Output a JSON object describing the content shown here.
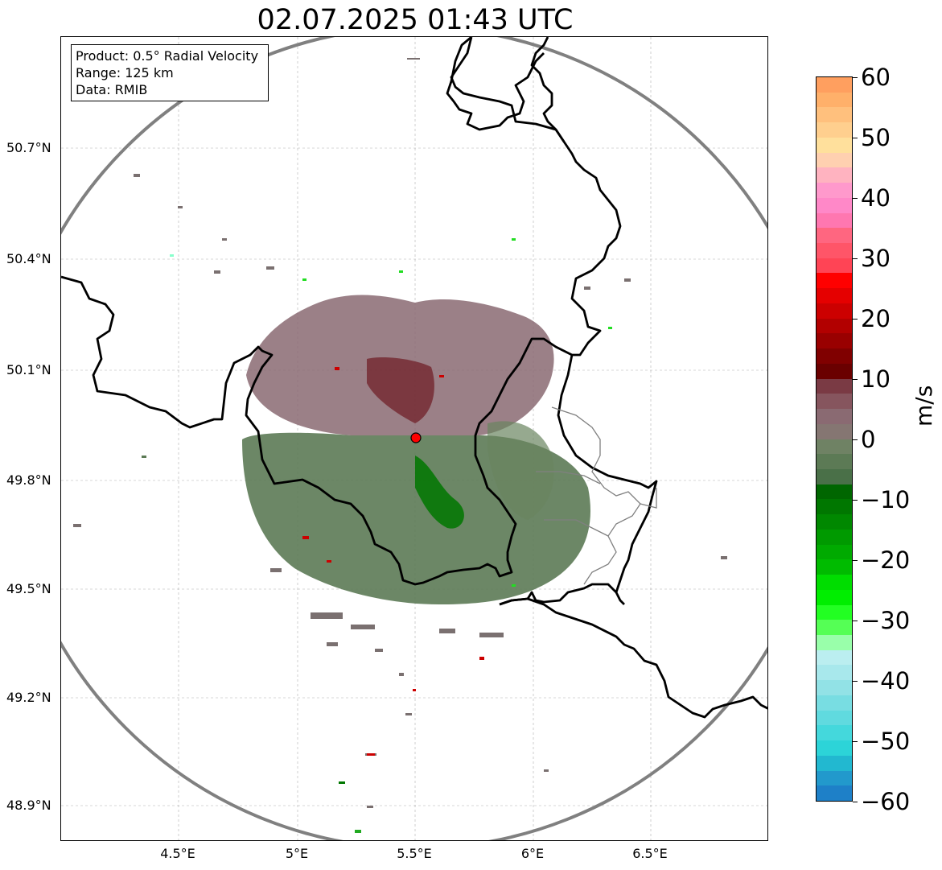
{
  "title": "02.07.2025 01:43 UTC",
  "info": {
    "product": "Product: 0.5° Radial Velocity",
    "range": "Range: 125 km",
    "data": "Data: RMIB"
  },
  "lat_ticks": [
    "50.7°N",
    "50.4°N",
    "50.1°N",
    "49.8°N",
    "49.5°N",
    "49.2°N",
    "48.9°N"
  ],
  "lon_ticks": [
    "4.5°E",
    "5°E",
    "5.5°E",
    "6°E",
    "6.5°E"
  ],
  "colorbar": {
    "unit": "m/s",
    "ticks": [
      "60",
      "50",
      "40",
      "30",
      "20",
      "10",
      "0",
      "−10",
      "−20",
      "−30",
      "−40",
      "−50",
      "−60"
    ],
    "min": -60,
    "max": 60,
    "colors_top_to_bottom": [
      "#ff9f5f",
      "#ffb06a",
      "#ffc07d",
      "#ffcf8e",
      "#ffe09c",
      "#ffd0b0",
      "#ffb3c0",
      "#ff99cc",
      "#ff88c8",
      "#ff77b0",
      "#ff6680",
      "#ff5568",
      "#ff4455",
      "#ff0000",
      "#e50000",
      "#cc0000",
      "#b20000",
      "#990000",
      "#800000",
      "#6a0000",
      "#7a3a44",
      "#86555e",
      "#8a6a72",
      "#857672",
      "#6f8264",
      "#5c7a55",
      "#4a7048",
      "#006600",
      "#007700",
      "#008800",
      "#009a00",
      "#00aa00",
      "#00bb00",
      "#00dd00",
      "#00ee00",
      "#22ff22",
      "#55ff55",
      "#99ffaa",
      "#bbeef0",
      "#a8e8ec",
      "#92e2e6",
      "#78dde2",
      "#60dadf",
      "#44d8dc",
      "#2cd4d8",
      "#22b8d0",
      "#2299cc",
      "#1e80c8"
    ]
  },
  "colors": {
    "approaching_green": "#5b7a55",
    "receding_mauve": "#866a72",
    "border_black": "#000000",
    "range_ring": "#808080",
    "radar_site": "#ff0000"
  },
  "map": {
    "center_lon": 5.5,
    "center_lat": 49.91,
    "range_km": 125,
    "lon_range": [
      4.0,
      7.0
    ],
    "lat_range": [
      48.8,
      51.0
    ]
  }
}
